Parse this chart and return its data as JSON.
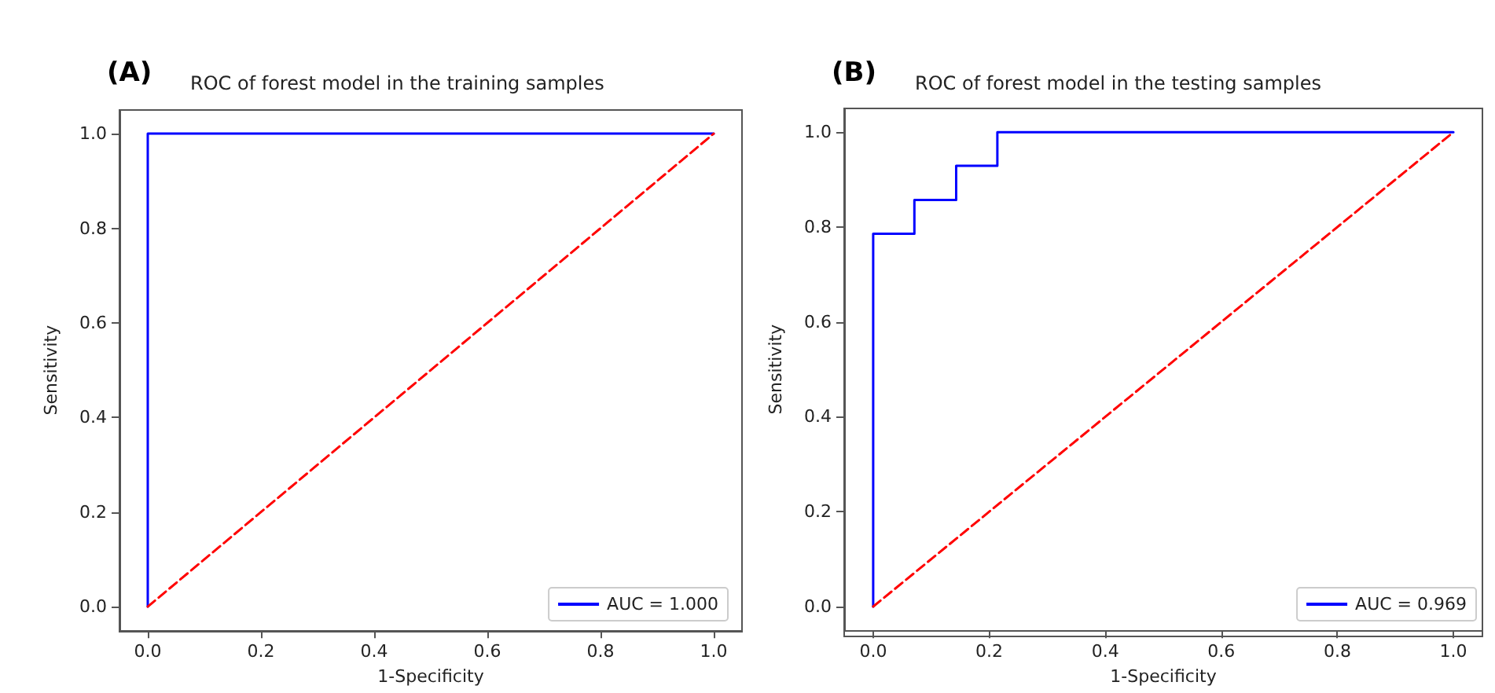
{
  "chart_data": [
    {
      "type": "line",
      "title": "ROC of forest model in the training samples",
      "annotations": [
        "(A)"
      ],
      "xlabel": "1-Specificity",
      "ylabel": "Sensitivity",
      "xlim": [
        -0.05,
        1.05
      ],
      "ylim": [
        -0.05,
        1.05
      ],
      "xticks": [
        {
          "value": 0,
          "label": "0.0"
        },
        {
          "value": 0.2,
          "label": "0.2"
        },
        {
          "value": 0.4,
          "label": "0.4"
        },
        {
          "value": 0.6,
          "label": "0.6"
        },
        {
          "value": 0.8,
          "label": "0.8"
        },
        {
          "value": 1,
          "label": "1.0"
        }
      ],
      "yticks": [
        {
          "value": 0,
          "label": "0.0"
        },
        {
          "value": 0.2,
          "label": "0.2"
        },
        {
          "value": 0.4,
          "label": "0.4"
        },
        {
          "value": 0.6,
          "label": "0.6"
        },
        {
          "value": 0.8,
          "label": "0.8"
        },
        {
          "value": 1,
          "label": "1.0"
        }
      ],
      "series": [
        {
          "name": "AUC = 1.000",
          "color": "#0000ff",
          "x": [
            0,
            0,
            1
          ],
          "values": [
            0,
            1,
            1
          ]
        },
        {
          "color": "#ff0000",
          "line_style": "dashed",
          "x": [
            0,
            1
          ],
          "values": [
            0,
            1
          ]
        }
      ],
      "grid": false,
      "legend": "bottom right",
      "marker": "none"
    },
    {
      "type": "line",
      "title": "ROC of forest model in the testing samples",
      "annotations": [
        "(B)"
      ],
      "xlabel": "1-Specificity",
      "ylabel": "Sensitivity",
      "xlim": [
        -0.05,
        1.05
      ],
      "ylim": [
        -0.05,
        1.05
      ],
      "xticks": [
        {
          "value": 0,
          "label": "0.0"
        },
        {
          "value": 0.2,
          "label": "0.2"
        },
        {
          "value": 0.4,
          "label": "0.4"
        },
        {
          "value": 0.6,
          "label": "0.6"
        },
        {
          "value": 0.8,
          "label": "0.8"
        },
        {
          "value": 1,
          "label": "1.0"
        }
      ],
      "yticks": [
        {
          "value": 0,
          "label": "0.0"
        },
        {
          "value": 0.2,
          "label": "0.2"
        },
        {
          "value": 0.4,
          "label": "0.4"
        },
        {
          "value": 0.6,
          "label": "0.6"
        },
        {
          "value": 0.8,
          "label": "0.8"
        },
        {
          "value": 1,
          "label": "1.0"
        }
      ],
      "series": [
        {
          "name": "AUC = 0.969",
          "color": "#0000ff",
          "x": [
            0,
            0,
            0.071,
            0.071,
            0.143,
            0.143,
            0.214,
            0.214,
            1
          ],
          "values": [
            0,
            0.786,
            0.786,
            0.857,
            0.857,
            0.929,
            0.929,
            1,
            1
          ]
        },
        {
          "color": "#ff0000",
          "line_style": "dashed",
          "x": [
            0,
            1
          ],
          "values": [
            0,
            1
          ]
        }
      ],
      "grid": false,
      "legend": "bottom right",
      "marker": "none"
    }
  ]
}
